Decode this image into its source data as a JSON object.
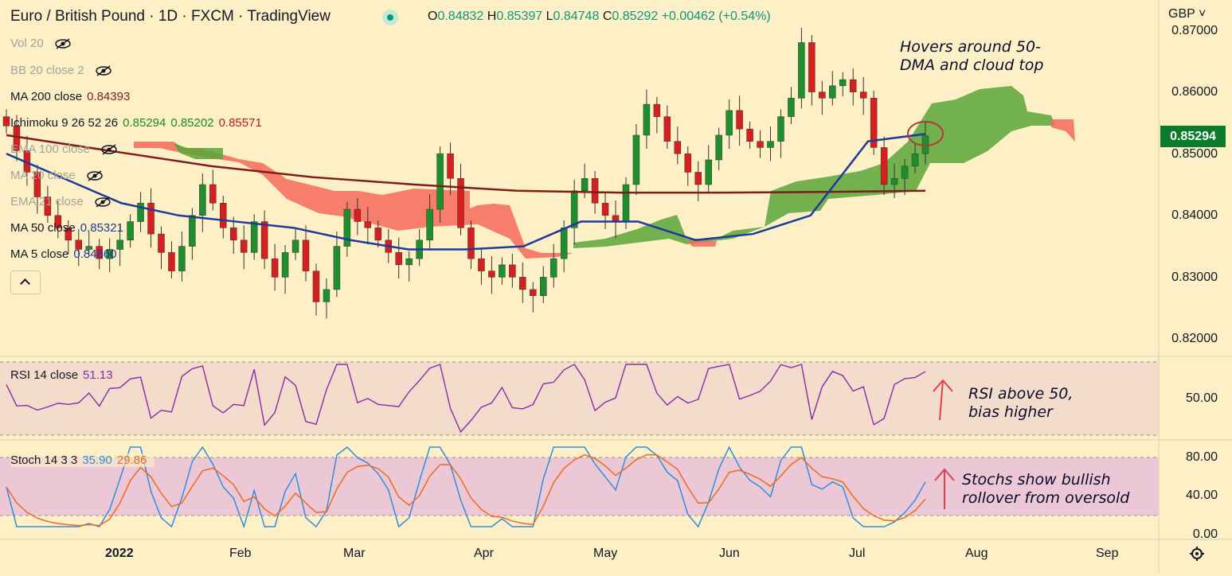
{
  "header": {
    "title": "Euro / British Pound · 1D · FXCM · TradingView",
    "ohlc": {
      "o_label": "O",
      "o": "0.84832",
      "h_label": "H",
      "h": "0.85397",
      "l_label": "L",
      "l": "0.84748",
      "c_label": "C",
      "c": "0.85292",
      "change": "+0.00462 (+0.54%)"
    },
    "currency": "GBP"
  },
  "indicators": [
    {
      "label": "Vol 20",
      "hidden": true
    },
    {
      "label": "BB 20 close 2",
      "hidden": true
    },
    {
      "label": "MA 200 close",
      "value": "0.84393",
      "color": "#7f1c1c"
    },
    {
      "label": "Ichimoku 9 26 52 26",
      "values": [
        "0.85294",
        "0.85202",
        "0.85571"
      ],
      "colors": [
        "#1e8a1e",
        "#1e8a1e",
        "#c21a1a"
      ]
    },
    {
      "label": "EMA 100 close",
      "hidden": true
    },
    {
      "label": "MA 20 close",
      "hidden": true
    },
    {
      "label": "EMA 21 close",
      "hidden": true
    },
    {
      "label": "MA 50 close",
      "value": "0.85321",
      "color": "#1d3a9c"
    },
    {
      "label": "MA 5 close",
      "value": "0.84860",
      "color": "#1d3a9c"
    }
  ],
  "price_axis": [
    "0.87000",
    "0.86000",
    "0.85000",
    "0.84000",
    "0.83000",
    "0.82000"
  ],
  "last_price": "0.85294",
  "rsi": {
    "label": "RSI 14 close",
    "value": "51.13",
    "axis": [
      "50.00"
    ]
  },
  "stoch": {
    "label": "Stoch 14 3 3",
    "k": "35.90",
    "d": "29.86",
    "axis": [
      "80.00",
      "40.00",
      "0.00"
    ]
  },
  "time_axis": [
    "2022",
    "Feb",
    "Mar",
    "Apr",
    "May",
    "Jun",
    "Jul",
    "Aug",
    "Sep"
  ],
  "annotations": {
    "price_note": [
      "Hovers around 50-",
      "DMA and cloud top"
    ],
    "rsi_note": [
      "RSI above 50,",
      "bias higher"
    ],
    "stoch_note": [
      "Stochs show bullish",
      "rollover from oversold"
    ]
  },
  "colors": {
    "background": "#fdf0c6",
    "up": "#1f8f2e",
    "down": "#d81f1f",
    "cloud_up": "#5aa63a",
    "cloud_down": "#f46a5a",
    "ma50": "#1d3a9c",
    "ma200": "#7f1c1c",
    "rsi": "#8a2aa8",
    "stoch_k": "#2f8ee0",
    "stoch_d": "#f06a1a"
  },
  "chart_data": {
    "type": "candlestick",
    "symbol": "EUR/GBP",
    "timeframe": "1D",
    "close_approx": [
      0.8545,
      0.8505,
      0.847,
      0.843,
      0.84,
      0.838,
      0.836,
      0.8345,
      0.835,
      0.833,
      0.8345,
      0.836,
      0.839,
      0.842,
      0.837,
      0.834,
      0.831,
      0.835,
      0.84,
      0.845,
      0.842,
      0.838,
      0.836,
      0.834,
      0.839,
      0.833,
      0.83,
      0.834,
      0.836,
      0.831,
      0.826,
      0.828,
      0.835,
      0.841,
      0.839,
      0.838,
      0.836,
      0.834,
      0.832,
      0.833,
      0.836,
      0.841,
      0.85,
      0.846,
      0.838,
      0.833,
      0.831,
      0.83,
      0.832,
      0.83,
      0.828,
      0.827,
      0.83,
      0.833,
      0.838,
      0.844,
      0.846,
      0.842,
      0.84,
      0.839,
      0.845,
      0.853,
      0.858,
      0.856,
      0.852,
      0.85,
      0.847,
      0.845,
      0.849,
      0.853,
      0.857,
      0.854,
      0.852,
      0.851,
      0.852,
      0.856,
      0.859,
      0.868,
      0.86,
      0.859,
      0.861,
      0.862,
      0.86,
      0.859,
      0.851,
      0.845,
      0.846,
      0.848,
      0.85,
      0.8529
    ],
    "ma50": [
      0.85,
      0.846,
      0.842,
      0.84,
      0.839,
      0.838,
      0.836,
      0.8345,
      0.8345,
      0.835,
      0.839,
      0.839,
      0.836,
      0.837,
      0.84,
      0.852,
      0.8532
    ],
    "ma200": [
      0.853,
      0.8505,
      0.848,
      0.8462,
      0.845,
      0.844,
      0.8437,
      0.8437,
      0.8438,
      0.844
    ],
    "rsi_value": 51.13,
    "stoch_k": 35.9,
    "stoch_d": 29.86
  }
}
